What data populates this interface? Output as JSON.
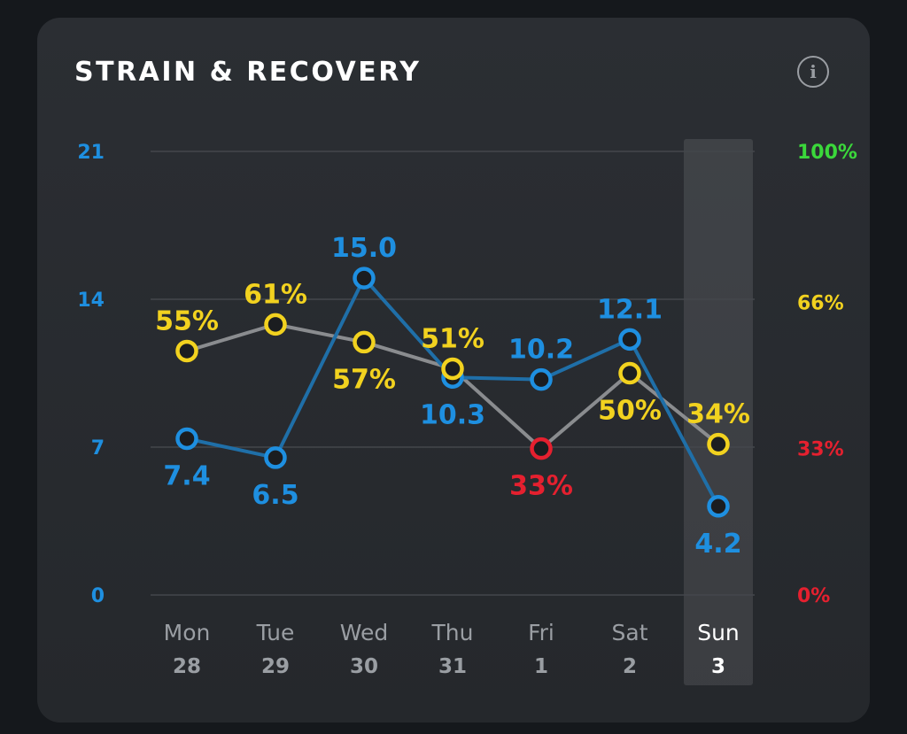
{
  "card": {
    "title": "STRAIN & RECOVERY",
    "info_icon": "i"
  },
  "colors": {
    "strain": "#1e8fe0",
    "strain_line": "#1f6fa8",
    "recovery_high": "#f2d21f",
    "recovery_low": "#e5202f",
    "recovery_line": "#8a8c8f",
    "axis_green": "#3bd83b",
    "axis_yellow": "#f2d21f",
    "axis_red": "#e5202f",
    "day_label": "#9a9ea3",
    "selected_day_label": "#ffffff",
    "grid": "#44474c"
  },
  "chart_data": {
    "type": "line",
    "title": "STRAIN & RECOVERY",
    "x": [
      {
        "day": "Mon",
        "date": "28"
      },
      {
        "day": "Tue",
        "date": "29"
      },
      {
        "day": "Wed",
        "date": "30"
      },
      {
        "day": "Thu",
        "date": "31"
      },
      {
        "day": "Fri",
        "date": "1"
      },
      {
        "day": "Sat",
        "date": "2"
      },
      {
        "day": "Sun",
        "date": "3"
      }
    ],
    "selected_index": 6,
    "y_left": {
      "ticks": [
        "21",
        "14",
        "7",
        "0"
      ],
      "tick_values": [
        21,
        14,
        7,
        0
      ],
      "range": [
        0,
        21
      ]
    },
    "y_right": {
      "ticks": [
        "100%",
        "66%",
        "33%",
        "0%"
      ],
      "tick_values": [
        100,
        66,
        33,
        0
      ],
      "tick_colors": [
        "#3bd83b",
        "#f2d21f",
        "#e5202f",
        "#e5202f"
      ],
      "range": [
        0,
        100
      ]
    },
    "grid": true,
    "series": [
      {
        "key": "strain",
        "axis": "left",
        "values": [
          7.4,
          6.5,
          15.0,
          10.3,
          10.2,
          12.1,
          4.2
        ],
        "labels": [
          "7.4",
          "6.5",
          "15.0",
          "10.3",
          "10.2",
          "12.1",
          "4.2"
        ],
        "label_positions": [
          "below",
          "below",
          "above",
          "below",
          "above",
          "above",
          "below"
        ]
      },
      {
        "key": "recovery",
        "axis": "right",
        "values": [
          55,
          61,
          57,
          51,
          33,
          50,
          34
        ],
        "labels": [
          "55%",
          "61%",
          "57%",
          "51%",
          "33%",
          "50%",
          "34%"
        ],
        "label_positions": [
          "above",
          "above",
          "below",
          "above",
          "below",
          "below",
          "above"
        ]
      }
    ]
  }
}
